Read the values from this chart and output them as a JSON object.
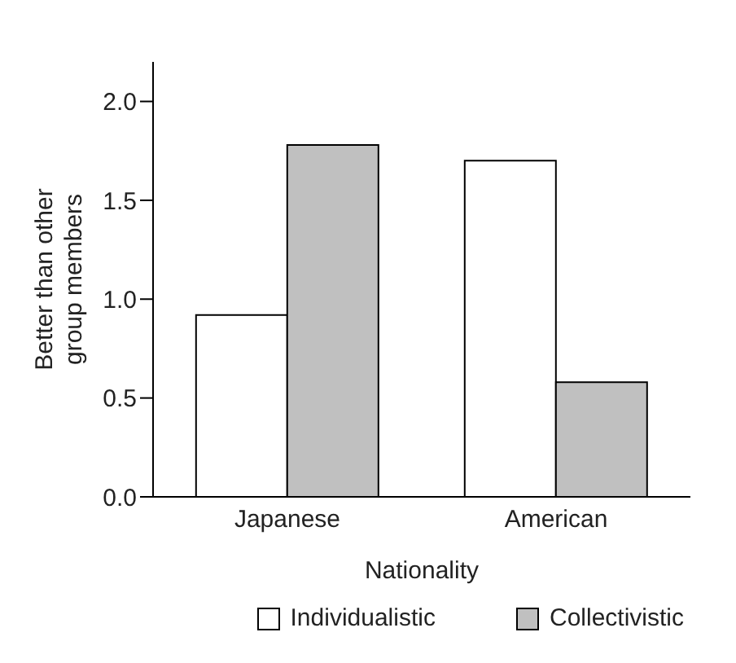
{
  "chart_data": {
    "type": "bar",
    "xlabel": "Nationality",
    "ylabel": "Better than other group members",
    "categories": [
      "Japanese",
      "American"
    ],
    "series": [
      {
        "name": "Individualistic",
        "color": "#ffffff",
        "values": [
          0.92,
          1.7
        ]
      },
      {
        "name": "Collectivistic",
        "color": "#c0c0c0",
        "values": [
          1.78,
          0.58
        ]
      }
    ],
    "ylim": [
      0,
      2.2
    ],
    "yticks": [
      {
        "value": 0,
        "label": "0.0"
      },
      {
        "value": 0.5,
        "label": "0.5"
      },
      {
        "value": 1,
        "label": "1.0"
      },
      {
        "value": 1.5,
        "label": "1.5"
      },
      {
        "value": 2,
        "label": "2.0"
      }
    ],
    "grid": false,
    "legend": "bottom"
  }
}
